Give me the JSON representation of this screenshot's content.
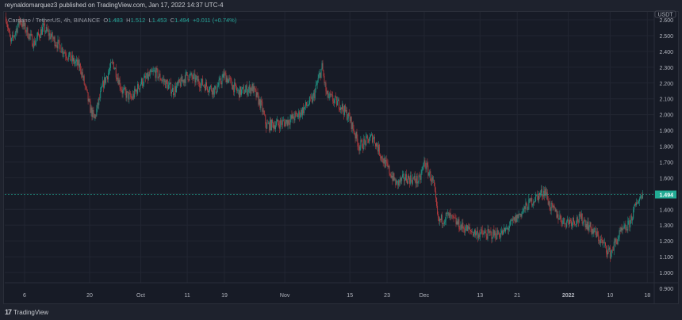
{
  "publisher_line": "reynaldomarquez3 published on TradingView.com, Jan 17, 2022 14:37 UTC-4",
  "legend": {
    "symbol": "Cardano / TetherUS, 4h, BINANCE",
    "o_label": "O",
    "o": "1.483",
    "h_label": "H",
    "h": "1.512",
    "l_label": "L",
    "l": "1.453",
    "c_label": "C",
    "c": "1.494",
    "change": "+0.011 (+0.74%)"
  },
  "footer": {
    "logo_text": "TradingView",
    "logo_mark": "17"
  },
  "colors": {
    "up": "#1f8f80",
    "down": "#b13a3d",
    "background": "#171b26",
    "grid": "#222632",
    "last_price_badge": "#22ab94"
  },
  "chart_data": {
    "type": "candlestick",
    "symbol": "ADAUSDT",
    "interval": "4h",
    "currency_label": "USDT",
    "last_price": "1.494",
    "ylim": [
      0.9,
      2.65
    ],
    "y_ticks": [
      "2.600",
      "2.500",
      "2.400",
      "2.300",
      "2.200",
      "2.100",
      "2.000",
      "1.900",
      "1.800",
      "1.700",
      "1.600",
      "1.500",
      "1.400",
      "1.300",
      "1.200",
      "1.100",
      "1.000",
      "0.900"
    ],
    "x_ticks": [
      {
        "label": "6",
        "date": "2021-09-06"
      },
      {
        "label": "20",
        "date": "2021-09-20"
      },
      {
        "label": "Oct",
        "date": "2021-10-01"
      },
      {
        "label": "11",
        "date": "2021-10-11"
      },
      {
        "label": "19",
        "date": "2021-10-19"
      },
      {
        "label": "Nov",
        "date": "2021-11-01"
      },
      {
        "label": "15",
        "date": "2021-11-15"
      },
      {
        "label": "23",
        "date": "2021-11-23"
      },
      {
        "label": "Dec",
        "date": "2021-12-01"
      },
      {
        "label": "13",
        "date": "2021-12-13"
      },
      {
        "label": "21",
        "date": "2021-12-21"
      },
      {
        "label": "2022",
        "date": "2022-01-01"
      },
      {
        "label": "10",
        "date": "2022-01-10"
      },
      {
        "label": "18",
        "date": "2022-01-18"
      }
    ],
    "approx_close_path": [
      [
        "2021-09-02",
        2.62
      ],
      [
        "2021-09-03",
        2.45
      ],
      [
        "2021-09-05",
        2.6
      ],
      [
        "2021-09-06",
        2.55
      ],
      [
        "2021-09-08",
        2.45
      ],
      [
        "2021-09-10",
        2.55
      ],
      [
        "2021-09-13",
        2.45
      ],
      [
        "2021-09-16",
        2.35
      ],
      [
        "2021-09-18",
        2.3
      ],
      [
        "2021-09-20",
        2.05
      ],
      [
        "2021-09-21",
        1.97
      ],
      [
        "2021-09-23",
        2.2
      ],
      [
        "2021-09-25",
        2.33
      ],
      [
        "2021-09-27",
        2.15
      ],
      [
        "2021-09-29",
        2.1
      ],
      [
        "2021-10-01",
        2.2
      ],
      [
        "2021-10-04",
        2.27
      ],
      [
        "2021-10-08",
        2.15
      ],
      [
        "2021-10-11",
        2.25
      ],
      [
        "2021-10-14",
        2.2
      ],
      [
        "2021-10-17",
        2.15
      ],
      [
        "2021-10-19",
        2.25
      ],
      [
        "2021-10-22",
        2.14
      ],
      [
        "2021-10-25",
        2.17
      ],
      [
        "2021-10-27",
        2.05
      ],
      [
        "2021-10-28",
        1.93
      ],
      [
        "2021-11-01",
        1.95
      ],
      [
        "2021-11-04",
        2.0
      ],
      [
        "2021-11-07",
        2.1
      ],
      [
        "2021-11-09",
        2.3
      ],
      [
        "2021-11-10",
        2.12
      ],
      [
        "2021-11-13",
        2.06
      ],
      [
        "2021-11-15",
        1.97
      ],
      [
        "2021-11-17",
        1.8
      ],
      [
        "2021-11-20",
        1.86
      ],
      [
        "2021-11-22",
        1.72
      ],
      [
        "2021-11-25",
        1.56
      ],
      [
        "2021-11-27",
        1.6
      ],
      [
        "2021-11-30",
        1.58
      ],
      [
        "2021-12-01",
        1.7
      ],
      [
        "2021-12-03",
        1.56
      ],
      [
        "2021-12-04",
        1.32
      ],
      [
        "2021-12-06",
        1.36
      ],
      [
        "2021-12-09",
        1.29
      ],
      [
        "2021-12-12",
        1.25
      ],
      [
        "2021-12-15",
        1.24
      ],
      [
        "2021-12-18",
        1.25
      ],
      [
        "2021-12-21",
        1.35
      ],
      [
        "2021-12-24",
        1.45
      ],
      [
        "2021-12-27",
        1.52
      ],
      [
        "2021-12-28",
        1.42
      ],
      [
        "2021-12-31",
        1.32
      ],
      [
        "2022-01-04",
        1.34
      ],
      [
        "2022-01-07",
        1.24
      ],
      [
        "2022-01-09",
        1.16
      ],
      [
        "2022-01-10",
        1.12
      ],
      [
        "2022-01-12",
        1.24
      ],
      [
        "2022-01-14",
        1.3
      ],
      [
        "2022-01-16",
        1.46
      ],
      [
        "2022-01-17",
        1.494
      ]
    ]
  }
}
